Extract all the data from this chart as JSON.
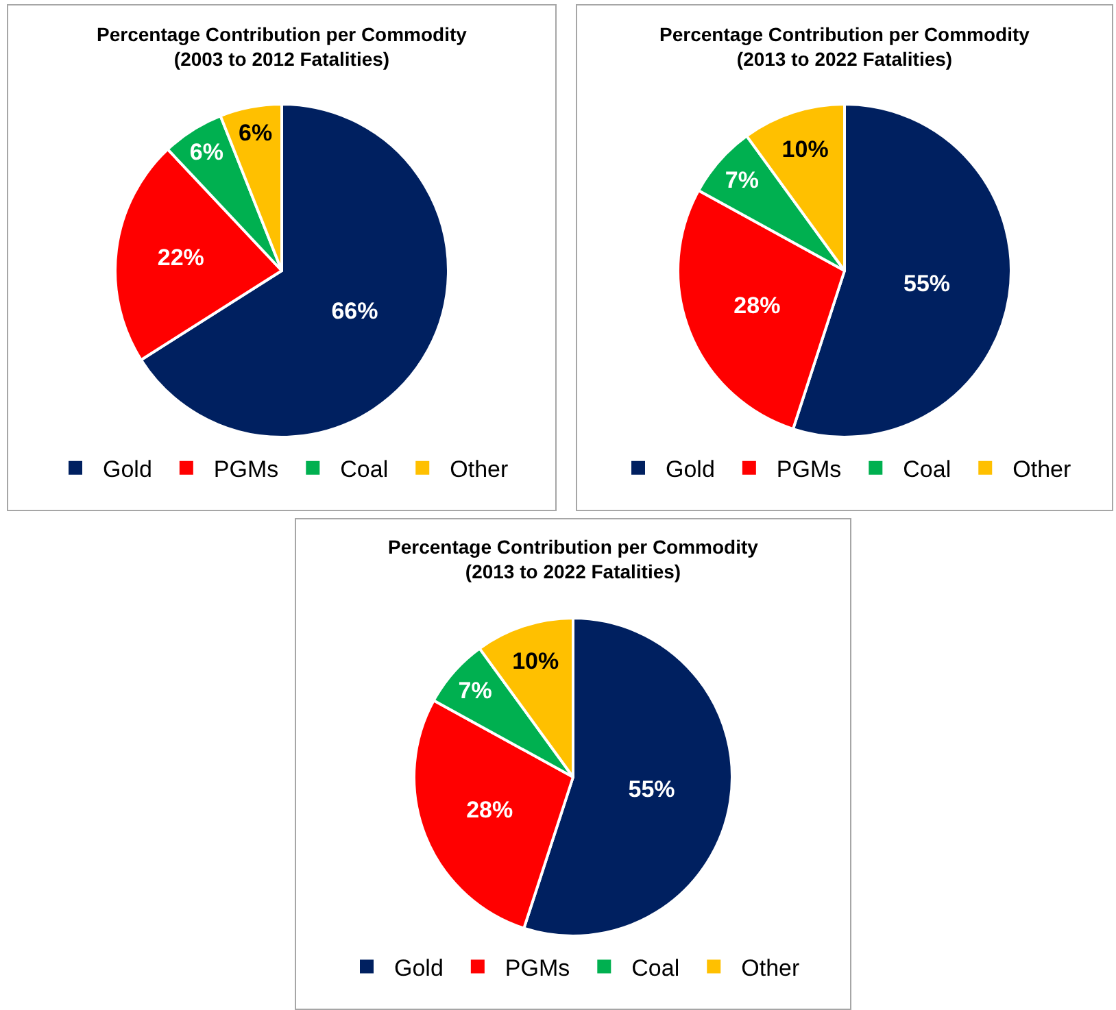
{
  "chart_data": [
    {
      "type": "pie",
      "title": "Percentage Contribution per Commodity\n(2003 to 2012 Fatalities)",
      "categories": [
        "Gold",
        "PGMs",
        "Coal",
        "Other"
      ],
      "values": [
        66,
        22,
        6,
        6
      ],
      "colors": [
        "#002060",
        "#ff0000",
        "#00b050",
        "#ffc000"
      ],
      "value_labels": [
        "66%",
        "22%",
        "6%",
        "6%"
      ],
      "legend": "bottom"
    },
    {
      "type": "pie",
      "title": "Percentage Contribution per Commodity\n(2013 to 2022 Fatalities)",
      "categories": [
        "Gold",
        "PGMs",
        "Coal",
        "Other"
      ],
      "values": [
        55,
        28,
        7,
        10
      ],
      "colors": [
        "#002060",
        "#ff0000",
        "#00b050",
        "#ffc000"
      ],
      "value_labels": [
        "55%",
        "28%",
        "7%",
        "10%"
      ],
      "legend": "bottom"
    },
    {
      "type": "pie",
      "title": "Percentage Contribution per Commodity\n(2013 to 2022 Fatalities)",
      "categories": [
        "Gold",
        "PGMs",
        "Coal",
        "Other"
      ],
      "values": [
        55,
        28,
        7,
        10
      ],
      "colors": [
        "#002060",
        "#ff0000",
        "#00b050",
        "#ffc000"
      ],
      "value_labels": [
        "55%",
        "28%",
        "7%",
        "10%"
      ],
      "legend": "bottom"
    }
  ]
}
